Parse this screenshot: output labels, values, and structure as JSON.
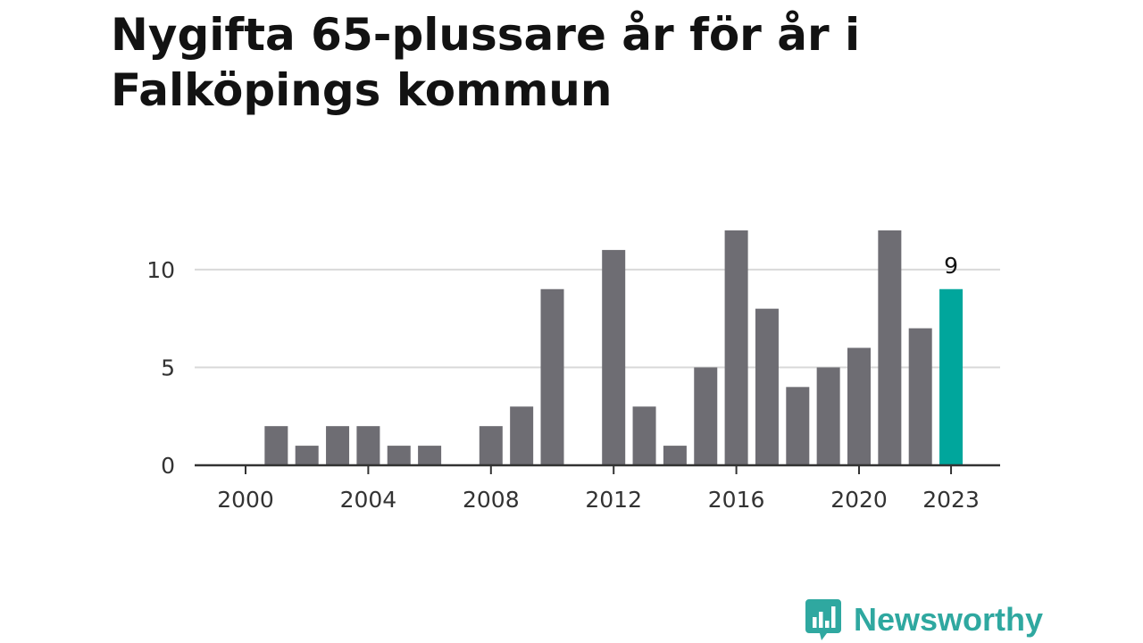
{
  "title": "Nygifta 65-plussare år för år i Falköpings kommun",
  "brand": {
    "name": "Newsworthy",
    "icon": "bar-chart-speech-bubble-icon",
    "color": "#2fa8a0"
  },
  "chart_data": {
    "type": "bar",
    "title": "Nygifta 65-plussare år för år i Falköpings kommun",
    "xlabel": "",
    "ylabel": "",
    "categories": [
      "2000",
      "2001",
      "2002",
      "2003",
      "2004",
      "2005",
      "2006",
      "2007",
      "2008",
      "2009",
      "2010",
      "2011",
      "2012",
      "2013",
      "2014",
      "2015",
      "2016",
      "2017",
      "2018",
      "2019",
      "2020",
      "2021",
      "2022",
      "2023"
    ],
    "values": [
      0,
      2,
      1,
      2,
      2,
      1,
      1,
      0,
      2,
      3,
      9,
      0,
      11,
      3,
      1,
      5,
      12,
      8,
      4,
      5,
      6,
      12,
      7,
      9
    ],
    "x_tick_labels": [
      "2000",
      "2004",
      "2008",
      "2012",
      "2016",
      "2020",
      "2023"
    ],
    "y_ticks": [
      0,
      5,
      10
    ],
    "ylim": [
      0,
      12
    ],
    "grid": true,
    "highlight": {
      "category": "2023",
      "label": "9"
    },
    "colors": {
      "bar": "#6e6d73",
      "highlight": "#00a69c",
      "grid": "#d9d9d9",
      "axis": "#333333"
    }
  }
}
